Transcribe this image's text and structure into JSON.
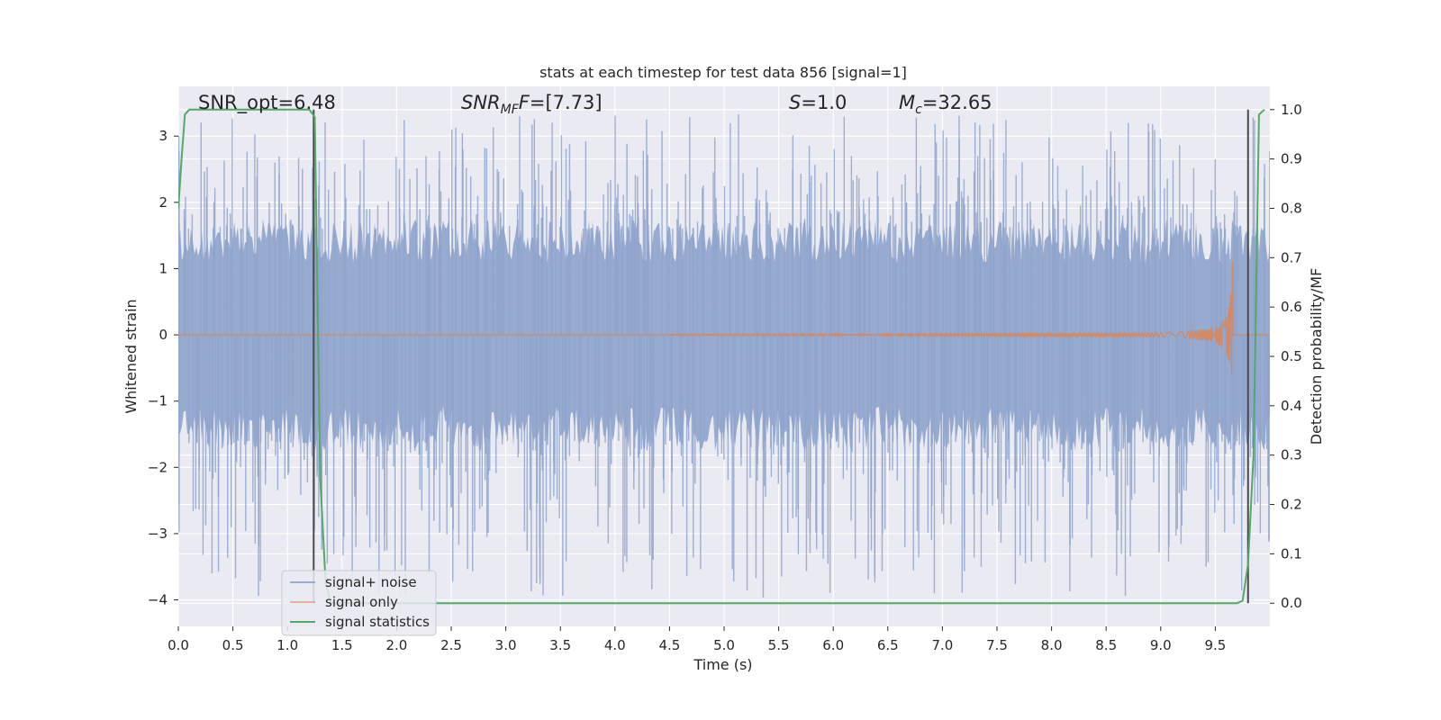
{
  "chart_data": {
    "type": "line",
    "title": "stats at each timestep for test data 856 [signal=1]",
    "xlabel": "Time (s)",
    "ylabel": "Whitened strain",
    "y2label": "Detection probability/MF",
    "xlim": [
      0.0,
      10.0
    ],
    "ylim": [
      -4.4,
      3.75
    ],
    "y2lim": [
      -0.047,
      1.047
    ],
    "xticks": [
      "0.0",
      "0.5",
      "1.0",
      "1.5",
      "2.0",
      "2.5",
      "3.0",
      "3.5",
      "4.0",
      "4.5",
      "5.0",
      "5.5",
      "6.0",
      "6.5",
      "7.0",
      "7.5",
      "8.0",
      "8.5",
      "9.0",
      "9.5"
    ],
    "yticks": [
      "3",
      "2",
      "1",
      "0",
      "−1",
      "−2",
      "−3",
      "−4"
    ],
    "y2ticks": [
      "1.0",
      "0.9",
      "0.8",
      "0.7",
      "0.6",
      "0.5",
      "0.4",
      "0.3",
      "0.2",
      "0.1",
      "0.0"
    ],
    "annotations": {
      "snr_opt": "SNR_opt=6.48",
      "snr_mf": "=[7.73]",
      "s_value": "=1.0",
      "mc_value": "=32.65"
    },
    "legend": {
      "placement": "lower-left",
      "entries": [
        "signal+ noise",
        "signal only",
        "signal statistics"
      ]
    },
    "colors": {
      "noise": "#8fa4cc",
      "signal": "#dd8452",
      "stats": "#55a868",
      "vline": "#4a4a4a",
      "background": "#eaeaf2"
    },
    "series": [
      {
        "name": "signal statistics",
        "axis": "right",
        "x": [
          0.0,
          0.03,
          0.06,
          0.1,
          0.2,
          0.5,
          1.0,
          1.2,
          1.25,
          1.3,
          1.35,
          1.4,
          1.5,
          2.0,
          3.0,
          4.0,
          5.0,
          6.0,
          7.0,
          8.0,
          9.0,
          9.5,
          9.6,
          9.65,
          9.7,
          9.75,
          9.8,
          9.85,
          9.9,
          9.95
        ],
        "values": [
          0.8,
          0.9,
          0.99,
          1.0,
          1.0,
          1.0,
          1.0,
          1.0,
          0.985,
          0.25,
          0.04,
          0.0,
          0.0,
          0.0,
          0.0,
          0.0,
          0.0,
          0.0,
          0.0,
          0.0,
          0.0,
          0.0,
          0.0,
          0.0,
          0.0,
          0.005,
          0.08,
          0.3,
          0.99,
          1.0
        ]
      },
      {
        "name": "signal only",
        "axis": "left",
        "chirp": {
          "start": 4.5,
          "end": 9.66,
          "peak_amplitude": 1.4
        }
      },
      {
        "name": "signal+ noise",
        "axis": "left",
        "noise": {
          "core_amplitude": 1.75,
          "spike_max": 3.4,
          "spike_min": -4.0
        }
      }
    ],
    "vlines": [
      1.24,
      9.8
    ]
  }
}
